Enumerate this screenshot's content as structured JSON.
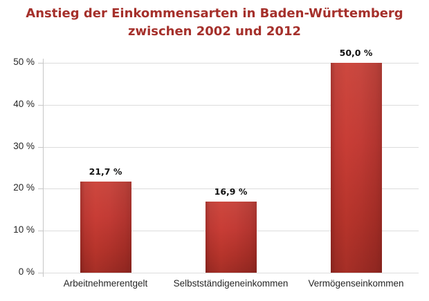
{
  "title": {
    "line1": "Anstieg der Einkommensarten in Baden-Württemberg",
    "line2": "zwischen 2002 und 2012"
  },
  "colors": {
    "title": "#A5302B",
    "bar_light": "#C7473F",
    "bar_mid": "#C23B35",
    "bar_dark": "#9C2B24",
    "gridline": "#DCDCDC",
    "axis": "#C6C6C6",
    "axis_text": "#262626",
    "value_text": "#111111",
    "background": "#FFFFFF"
  },
  "chart_data": {
    "type": "bar",
    "title": "Anstieg der Einkommensarten in Baden-Württemberg zwischen 2002 und 2012",
    "categories": [
      "Arbeitnehmerentgelt",
      "Selbstständigeneinkommen",
      "Vermögenseinkommen"
    ],
    "values": [
      21.7,
      16.9,
      50.0
    ],
    "value_labels": [
      "21,7 %",
      "16,9 %",
      "50,0 %"
    ],
    "xlabel": "",
    "ylabel": "",
    "ylim": [
      0,
      50
    ],
    "yticks": [
      0,
      10,
      20,
      30,
      40,
      50
    ],
    "ytick_labels": [
      "0 %",
      "10 %",
      "20 %",
      "30 %",
      "40 %",
      "50 %"
    ],
    "grid": "horizontal-only",
    "legend": "none",
    "bar_color": "#C23B35"
  }
}
